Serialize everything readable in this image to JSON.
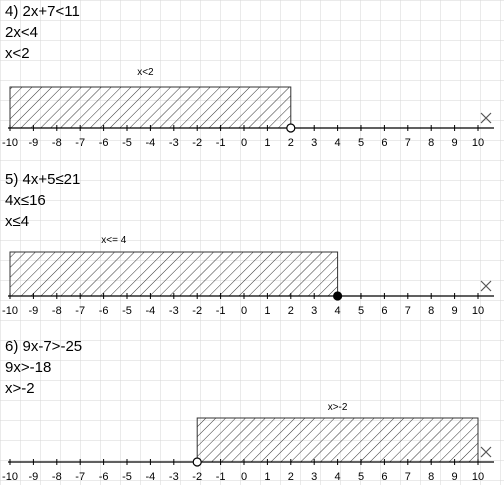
{
  "colors": {
    "background": "#ffffff",
    "grid": "#d6d6d6",
    "axis": "#000000",
    "hatch": "#333333"
  },
  "tick_values": [
    -10,
    -9,
    -8,
    -7,
    -6,
    -5,
    -4,
    -3,
    -2,
    -1,
    0,
    1,
    2,
    3,
    4,
    5,
    6,
    7,
    8,
    9,
    10
  ],
  "axis_end_marker": "close-icon",
  "problems": [
    {
      "steps": [
        "4)  2x+7<11",
        "2x<4",
        "x<2"
      ],
      "caption": "x<2",
      "interval_from": -10,
      "interval_to": 2,
      "endpoint": 2,
      "endpoint_style": "open"
    },
    {
      "steps": [
        "5)  4x+5≤21",
        "4x≤16",
        "x≤4"
      ],
      "caption": "x<= 4",
      "interval_from": -10,
      "interval_to": 4,
      "endpoint": 4,
      "endpoint_style": "closed"
    },
    {
      "steps": [
        "6)  9x-7>-25",
        "9x>-18",
        "x>-2"
      ],
      "caption": "x>-2",
      "interval_from": -2,
      "interval_to": 10,
      "endpoint": -2,
      "endpoint_style": "open"
    }
  ]
}
